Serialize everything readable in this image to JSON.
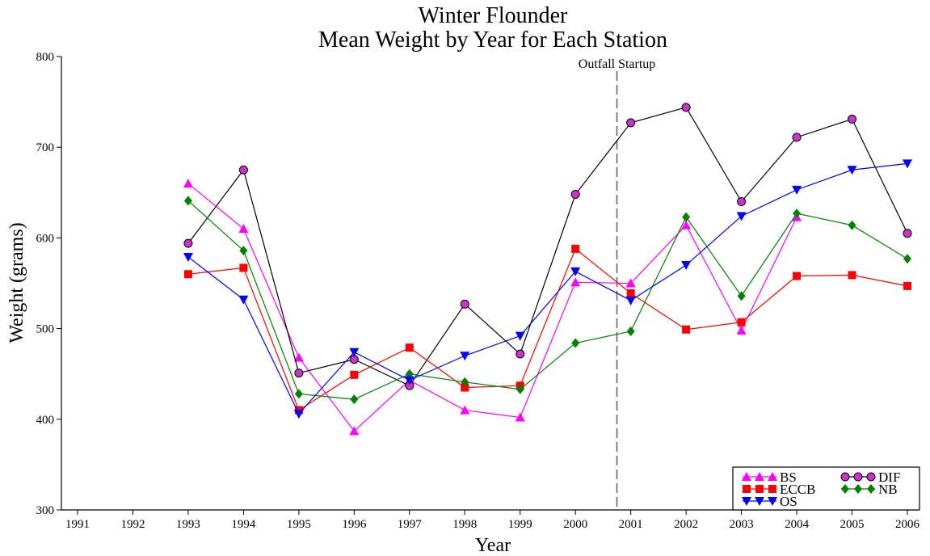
{
  "chart_data": {
    "type": "line",
    "title": "Winter Flounder",
    "subtitle": "Mean Weight by Year for Each Station",
    "xlabel": "Year",
    "ylabel": "Weight (grams)",
    "xlim": [
      1991,
      2006
    ],
    "ylim": [
      300,
      800
    ],
    "x_ticks": [
      "1991",
      "1992",
      "1993",
      "1994",
      "1995",
      "1996",
      "1997",
      "1998",
      "1999",
      "2000",
      "2001",
      "2002",
      "2003",
      "2004",
      "2005",
      "2006"
    ],
    "y_ticks": [
      "300",
      "400",
      "500",
      "600",
      "700",
      "800"
    ],
    "grid": false,
    "legend_position": "bottom-right",
    "annotation": {
      "label": "Outfall Startup",
      "x": 2000.75
    },
    "x": [
      1993,
      1994,
      1995,
      1996,
      1997,
      1998,
      1999,
      2000,
      2001,
      2002,
      2003,
      2004,
      2005,
      2006
    ],
    "series": [
      {
        "name": "BS",
        "color": "#ff00ff",
        "line_color": "#ff00ff",
        "marker": "triangle-up",
        "values": [
          660,
          610,
          468,
          387,
          443,
          410,
          402,
          551,
          550,
          614,
          498,
          623,
          null,
          null
        ]
      },
      {
        "name": "DIF",
        "color": "#cc33cc",
        "line_color": "#000000",
        "marker": "circle",
        "values": [
          594,
          675,
          451,
          466,
          437,
          527,
          472,
          648,
          727,
          744,
          640,
          711,
          731,
          605
        ]
      },
      {
        "name": "ECCB",
        "color": "#ff0000",
        "line_color": "#ff0000",
        "marker": "square",
        "values": [
          560,
          567,
          410,
          449,
          479,
          435,
          437,
          588,
          539,
          499,
          507,
          558,
          559,
          547
        ]
      },
      {
        "name": "NB",
        "color": "#008000",
        "line_color": "#008000",
        "marker": "diamond",
        "values": [
          641,
          586,
          428,
          422,
          450,
          441,
          433,
          484,
          497,
          623,
          536,
          627,
          614,
          577
        ]
      },
      {
        "name": "OS",
        "color": "#0000ff",
        "line_color": "#0000ff",
        "marker": "triangle-down",
        "values": [
          579,
          532,
          406,
          474,
          443,
          470,
          492,
          563,
          531,
          570,
          624,
          653,
          675,
          682
        ]
      }
    ]
  }
}
